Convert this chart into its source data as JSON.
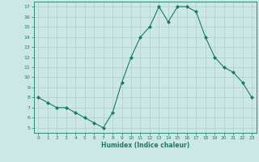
{
  "x": [
    0,
    1,
    2,
    3,
    4,
    5,
    6,
    7,
    8,
    9,
    10,
    11,
    12,
    13,
    14,
    15,
    16,
    17,
    18,
    19,
    20,
    21,
    22,
    23
  ],
  "y": [
    8.0,
    7.5,
    7.0,
    7.0,
    6.5,
    6.0,
    5.5,
    5.0,
    6.5,
    9.5,
    12.0,
    14.0,
    15.0,
    17.0,
    15.5,
    17.0,
    17.0,
    16.5,
    14.0,
    12.0,
    11.0,
    10.5,
    9.5,
    8.0
  ],
  "xlabel": "Humidex (Indice chaleur)",
  "ylabel": "",
  "ylim": [
    4.5,
    17.5
  ],
  "xlim": [
    -0.5,
    23.5
  ],
  "yticks": [
    5,
    6,
    7,
    8,
    9,
    10,
    11,
    12,
    13,
    14,
    15,
    16,
    17
  ],
  "xticks": [
    0,
    1,
    2,
    3,
    4,
    5,
    6,
    7,
    8,
    9,
    10,
    11,
    12,
    13,
    14,
    15,
    16,
    17,
    18,
    19,
    20,
    21,
    22,
    23
  ],
  "line_color": "#1a7a6a",
  "marker_color": "#1a7a6a",
  "bg_color": "#cce8e4",
  "grid_color": "#b0cdc9",
  "tick_label_color": "#1a7a6a",
  "xlabel_color": "#1a7a6a"
}
